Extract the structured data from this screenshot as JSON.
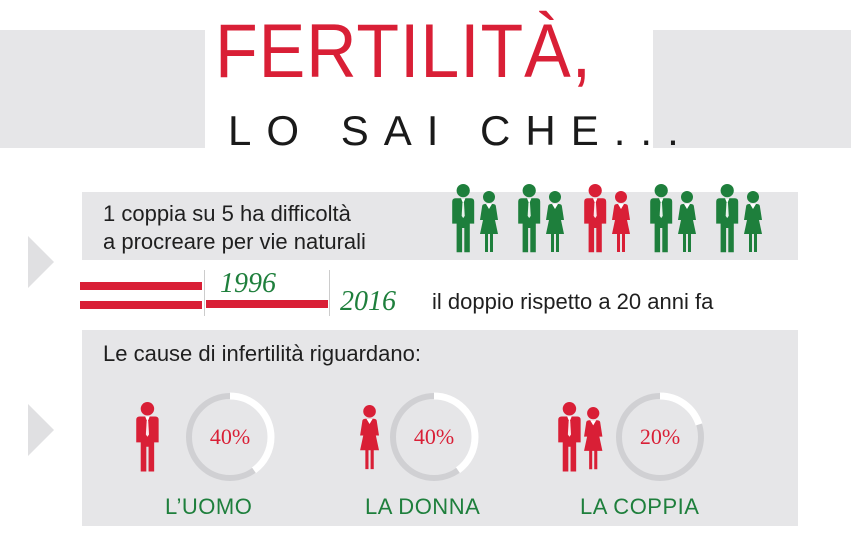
{
  "title": {
    "line1": "FERTILITÀ,",
    "line2": "LO SAI CHE..."
  },
  "colors": {
    "red": "#d91f36",
    "green": "#1e7f3c",
    "grey": "#e6e6e8",
    "ring": "#d0d0d3"
  },
  "fact1": {
    "line1": "1 coppia su 5 ha difficoltà",
    "line2": "a procreare per vie naturali",
    "icons": [
      "couple-green",
      "couple-green",
      "couple-red",
      "couple-green",
      "couple-green"
    ]
  },
  "fact2": {
    "year_a": "1996",
    "year_b": "2016",
    "text": "il doppio rispetto a 20 anni fa"
  },
  "causes": {
    "heading": "Le cause di infertilità riguardano:",
    "items": [
      {
        "label": "L’UOMO",
        "percent_text": "40%",
        "icon": "man-icon"
      },
      {
        "label": "LA DONNA",
        "percent_text": "40%",
        "icon": "woman-icon"
      },
      {
        "label": "LA COPPIA",
        "percent_text": "20%",
        "icon": "couple-icon"
      }
    ]
  },
  "chart_data": {
    "type": "pie",
    "title": "Le cause di infertilità riguardano:",
    "categories": [
      "L’UOMO",
      "LA DONNA",
      "LA COPPIA"
    ],
    "values": [
      40,
      40,
      20
    ]
  }
}
